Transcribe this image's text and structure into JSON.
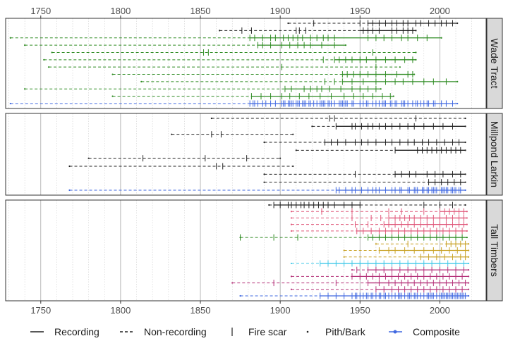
{
  "chart_data": {
    "type": "fire-history",
    "xlim": [
      1728,
      2029
    ],
    "x_ticks": [
      1750,
      1800,
      1850,
      1900,
      1950,
      2000
    ],
    "x_tick_labels": [
      "1750",
      "1800",
      "1850",
      "1900",
      "1950",
      "2000"
    ],
    "grid": true,
    "legend_position": "bottom",
    "legend": {
      "recording": "Recording",
      "non_recording": "Non-recording",
      "fire_scar": "Fire scar",
      "pith_bark": "Pith/Bark",
      "composite": "Composite"
    },
    "colors": {
      "black": "#222222",
      "green": "#2e8b22",
      "blue": "#4169e1",
      "pink": "#e0587a",
      "gold": "#c9a227",
      "cyan": "#3fc8e8",
      "magenta": "#b5337a",
      "strip_fill": "#d9d9d9"
    },
    "panels": [
      {
        "name": "Wade Tract",
        "series": [
          {
            "color": "black",
            "start": 1905,
            "end": 2011,
            "rec_start": 1955,
            "fires": [
              1921,
              1950,
              1955,
              1958,
              1962,
              1966,
              1970,
              1973,
              1977,
              1980,
              1985,
              1988,
              1993,
              1997,
              2001,
              2004,
              2008
            ]
          },
          {
            "color": "black",
            "start": 1862,
            "end": 1985,
            "rec_start": 1950,
            "fires": [
              1876,
              1882,
              1910,
              1912,
              1916,
              1952,
              1955,
              1958,
              1962,
              1970,
              1973,
              1977,
              1980,
              1983
            ]
          },
          {
            "color": "green",
            "start": 1731,
            "end": 2001,
            "rec_start": 1881,
            "fires": [
              1881,
              1884,
              1889,
              1894,
              1897,
              1902,
              1905,
              1908,
              1911,
              1914,
              1919,
              1923,
              1927,
              1930,
              1934,
              1955,
              1960,
              1965,
              1970,
              1976,
              1980,
              1986,
              1992
            ]
          },
          {
            "color": "green",
            "start": 1740,
            "end": 1941,
            "rec_start": 1886,
            "fires": [
              1886,
              1889,
              1894,
              1901,
              1906,
              1911,
              1915,
              1919,
              1926,
              1934
            ]
          },
          {
            "color": "green",
            "start": 1757,
            "end": 1985,
            "rec_start": null,
            "fires": [
              1852,
              1855,
              1958
            ]
          },
          {
            "color": "green",
            "start": 1752,
            "end": 1985,
            "rec_start": 1934,
            "fires": [
              1927,
              1934,
              1937,
              1941,
              1945,
              1950,
              1954,
              1960,
              1966,
              1972,
              1978,
              1983
            ]
          },
          {
            "color": "green",
            "start": 1755,
            "end": 1975,
            "rec_start": null,
            "fires": [
              1901,
              1960
            ]
          },
          {
            "color": "green",
            "start": 1795,
            "end": 1984,
            "rec_start": 1939,
            "fires": [
              1939,
              1942,
              1946,
              1950,
              1955,
              1960,
              1966,
              1973,
              1980,
              1983
            ]
          },
          {
            "color": "green",
            "start": 1813,
            "end": 2011,
            "rec_start": 1939,
            "fires": [
              1928,
              1934,
              1939,
              1945,
              1952,
              1960,
              1966,
              1972,
              1977,
              1983,
              1990,
              1996,
              2004
            ]
          },
          {
            "color": "green",
            "start": 1740,
            "end": 1963,
            "rec_start": 1903,
            "fires": [
              1903,
              1907,
              1915,
              1919,
              1923,
              1926,
              1931,
              1938,
              1945,
              1950,
              1955,
              1960
            ]
          },
          {
            "color": "green",
            "start": 1795,
            "end": 1971,
            "rec_start": 1882,
            "fires": [
              1882,
              1888,
              1894,
              1901,
              1906,
              1912,
              1918,
              1925,
              1932,
              1940,
              1946,
              1952,
              1958,
              1964,
              1969
            ]
          },
          {
            "color": "blue",
            "start": 1731,
            "end": 2011,
            "rec_start": 1881,
            "composite": true,
            "fires": [
              1881,
              1883,
              1884,
              1886,
              1889,
              1891,
              1894,
              1897,
              1901,
              1902,
              1903,
              1905,
              1906,
              1907,
              1908,
              1910,
              1911,
              1912,
              1914,
              1915,
              1916,
              1918,
              1919,
              1921,
              1923,
              1925,
              1926,
              1927,
              1928,
              1930,
              1931,
              1932,
              1934,
              1937,
              1938,
              1939,
              1940,
              1941,
              1942,
              1945,
              1946,
              1950,
              1952,
              1954,
              1955,
              1958,
              1960,
              1962,
              1964,
              1965,
              1966,
              1969,
              1970,
              1972,
              1973,
              1976,
              1977,
              1978,
              1980,
              1983,
              1985,
              1986,
              1988,
              1990,
              1992,
              1993,
              1996,
              1997,
              2001,
              2004,
              2008
            ]
          }
        ]
      },
      {
        "name": "Millpond Larkin",
        "series": [
          {
            "color": "black",
            "start": 1857,
            "end": 2016,
            "rec_start": null,
            "fires": [
              1931,
              1934,
              1985
            ]
          },
          {
            "color": "black",
            "start": 1920,
            "end": 2016,
            "rec_start": 1935,
            "fires": [
              1935,
              1945,
              1947,
              1951,
              1955,
              1958,
              1962,
              1966,
              1970,
              1975,
              1980,
              1984,
              1990,
              1996,
              2002,
              2008
            ]
          },
          {
            "color": "black",
            "start": 1832,
            "end": 1908,
            "rec_start": null,
            "fires": [
              1857,
              1863
            ]
          },
          {
            "color": "black",
            "start": 1890,
            "end": 2016,
            "rec_start": 1928,
            "fires": [
              1928,
              1932,
              1936,
              1941,
              1947,
              1951,
              1955,
              1960,
              1966,
              1970,
              1975,
              1980,
              1984,
              1989,
              1993,
              1998,
              2003,
              2008,
              2012
            ]
          },
          {
            "color": "black",
            "start": 1910,
            "end": 2016,
            "rec_start": 1972,
            "fires": [
              1972,
              1986,
              1989,
              1992,
              1995,
              1998,
              2001,
              2004,
              2007,
              2010,
              2013
            ]
          },
          {
            "color": "black",
            "start": 1780,
            "end": 1900,
            "rec_start": null,
            "fires": [
              1814,
              1853,
              1879
            ]
          },
          {
            "color": "black",
            "start": 1768,
            "end": 1908,
            "rec_start": null,
            "fires": [
              1860,
              1864
            ]
          },
          {
            "color": "black",
            "start": 1890,
            "end": 2016,
            "rec_start": 1972,
            "fires": [
              1947,
              1972,
              1976,
              1981,
              1985,
              1992,
              1997,
              2002,
              2008,
              2013
            ]
          },
          {
            "color": "black",
            "start": 1890,
            "end": 2016,
            "rec_start": 1993,
            "fires": [
              1993,
              1997,
              2001,
              2005,
              2009,
              2013
            ]
          },
          {
            "color": "blue",
            "start": 1768,
            "end": 2016,
            "rec_start": 1935,
            "composite": true,
            "fires": [
              1935,
              1937,
              1941,
              1945,
              1947,
              1951,
              1955,
              1958,
              1960,
              1962,
              1966,
              1970,
              1972,
              1975,
              1976,
              1980,
              1981,
              1984,
              1985,
              1986,
              1989,
              1990,
              1992,
              1993,
              1995,
              1996,
              1997,
              1998,
              2001,
              2002,
              2003,
              2004,
              2005,
              2007,
              2008,
              2009,
              2010,
              2012,
              2013
            ]
          }
        ]
      },
      {
        "name": "Tall Timbers",
        "series": [
          {
            "color": "black",
            "start": 1893,
            "end": 2016,
            "rec_start": 1896,
            "rec_end": 1950,
            "fires": [
              1896,
              1900,
              1905,
              1907,
              1910,
              1913,
              1915,
              1918,
              1921,
              1924,
              1927,
              1930,
              1934,
              1940,
              1945,
              1950,
              1990,
              2000,
              2008
            ]
          },
          {
            "color": "pink",
            "start": 1907,
            "end": 2017,
            "rec_start": 2000,
            "fires": [
              1926,
              1945,
              1968,
              1976,
              1990,
              2000,
              2003,
              2006,
              2009,
              2012,
              2015
            ]
          },
          {
            "color": "pink",
            "start": 1907,
            "end": 2017,
            "rec_start": 1968,
            "fires": [
              1945,
              1957,
              1963,
              1968,
              1972,
              1975,
              1978,
              1981,
              1984,
              1988,
              1992,
              1996,
              2000,
              2004,
              2008,
              2012,
              2015
            ]
          },
          {
            "color": "pink",
            "start": 1907,
            "end": 2017,
            "rec_start": 1965,
            "fires": [
              1947,
              1955,
              1965,
              1968,
              1972,
              1976,
              1980,
              1984,
              1988,
              1992,
              1996,
              2000,
              2004,
              2008,
              2012,
              2015
            ]
          },
          {
            "color": "pink",
            "start": 1907,
            "end": 2017,
            "rec_start": 1948,
            "fires": [
              1948,
              1952,
              1957,
              1962,
              1966,
              1970,
              1974,
              1978,
              1982,
              1986,
              1990,
              1994,
              1998,
              2002,
              2006,
              2010,
              2014
            ]
          },
          {
            "color": "green",
            "start": 1875,
            "end": 2017,
            "rec_start": 1955,
            "fires": [
              1875,
              1896,
              1911,
              1955,
              1958,
              1962,
              1966,
              1970,
              1974,
              1978,
              1982,
              1986,
              1990,
              1994,
              1998,
              2002,
              2006,
              2010,
              2014
            ]
          },
          {
            "color": "gold",
            "start": 1960,
            "end": 2018,
            "rec_start": 2004,
            "fires": [
              1980,
              2004,
              2007,
              2010,
              2013,
              2016
            ]
          },
          {
            "color": "gold",
            "start": 1940,
            "end": 2018,
            "rec_start": 1962,
            "fires": [
              1962,
              1968,
              1972,
              1978,
              1984,
              1990,
              1996,
              2001,
              2006,
              2011,
              2016
            ]
          },
          {
            "color": "gold",
            "start": 1940,
            "end": 2018,
            "rec_start": 1988,
            "fires": [
              1988,
              1993,
              1998,
              2003,
              2008,
              2013,
              2016
            ]
          },
          {
            "color": "cyan",
            "start": 1907,
            "end": 2018,
            "rec_start": 1925,
            "fires": [
              1925,
              1930,
              1935,
              1940,
              1945,
              1950,
              1955,
              1960,
              1965,
              1970,
              1975,
              1980,
              1985,
              1990,
              1995,
              2000,
              2005,
              2010,
              2015
            ]
          },
          {
            "color": "magenta",
            "start": 1945,
            "end": 2018,
            "rec_start": 1955,
            "fires": [
              1948,
              1955,
              1960,
              1965,
              1970,
              1975,
              1980,
              1985,
              1990,
              1995,
              2000,
              2005,
              2010,
              2015
            ]
          },
          {
            "color": "magenta",
            "start": 1907,
            "end": 2018,
            "rec_start": 1945,
            "fires": [
              1945,
              1950,
              1954,
              1958,
              1962,
              1966,
              1970,
              1974,
              1978,
              1982,
              1986,
              1990,
              1994,
              1998,
              2002,
              2006,
              2010,
              2014
            ]
          },
          {
            "color": "magenta",
            "start": 1870,
            "end": 2018,
            "rec_start": 1955,
            "fires": [
              1896,
              1935,
              1955,
              1962,
              1968,
              1972,
              1976,
              1980,
              1984,
              1988,
              1992,
              1996,
              2000,
              2004,
              2008,
              2012,
              2016
            ]
          },
          {
            "color": "magenta",
            "start": 1907,
            "end": 2018,
            "rec_start": 1960,
            "fires": [
              1960,
              1965,
              1970,
              1974,
              1978,
              1982,
              1986,
              1990,
              1994,
              1998,
              2002,
              2006,
              2010,
              2014
            ]
          },
          {
            "color": "blue",
            "start": 1875,
            "end": 2018,
            "rec_start": 1925,
            "composite": true,
            "fires": [
              1925,
              1930,
              1935,
              1940,
              1945,
              1947,
              1948,
              1950,
              1952,
              1954,
              1955,
              1957,
              1958,
              1960,
              1962,
              1963,
              1965,
              1966,
              1968,
              1970,
              1972,
              1974,
              1975,
              1976,
              1978,
              1980,
              1981,
              1982,
              1984,
              1985,
              1986,
              1988,
              1990,
              1992,
              1993,
              1994,
              1995,
              1996,
              1998,
              2000,
              2001,
              2002,
              2003,
              2004,
              2005,
              2006,
              2007,
              2008,
              2009,
              2010,
              2011,
              2012,
              2013,
              2014,
              2015,
              2016
            ]
          }
        ]
      }
    ]
  }
}
